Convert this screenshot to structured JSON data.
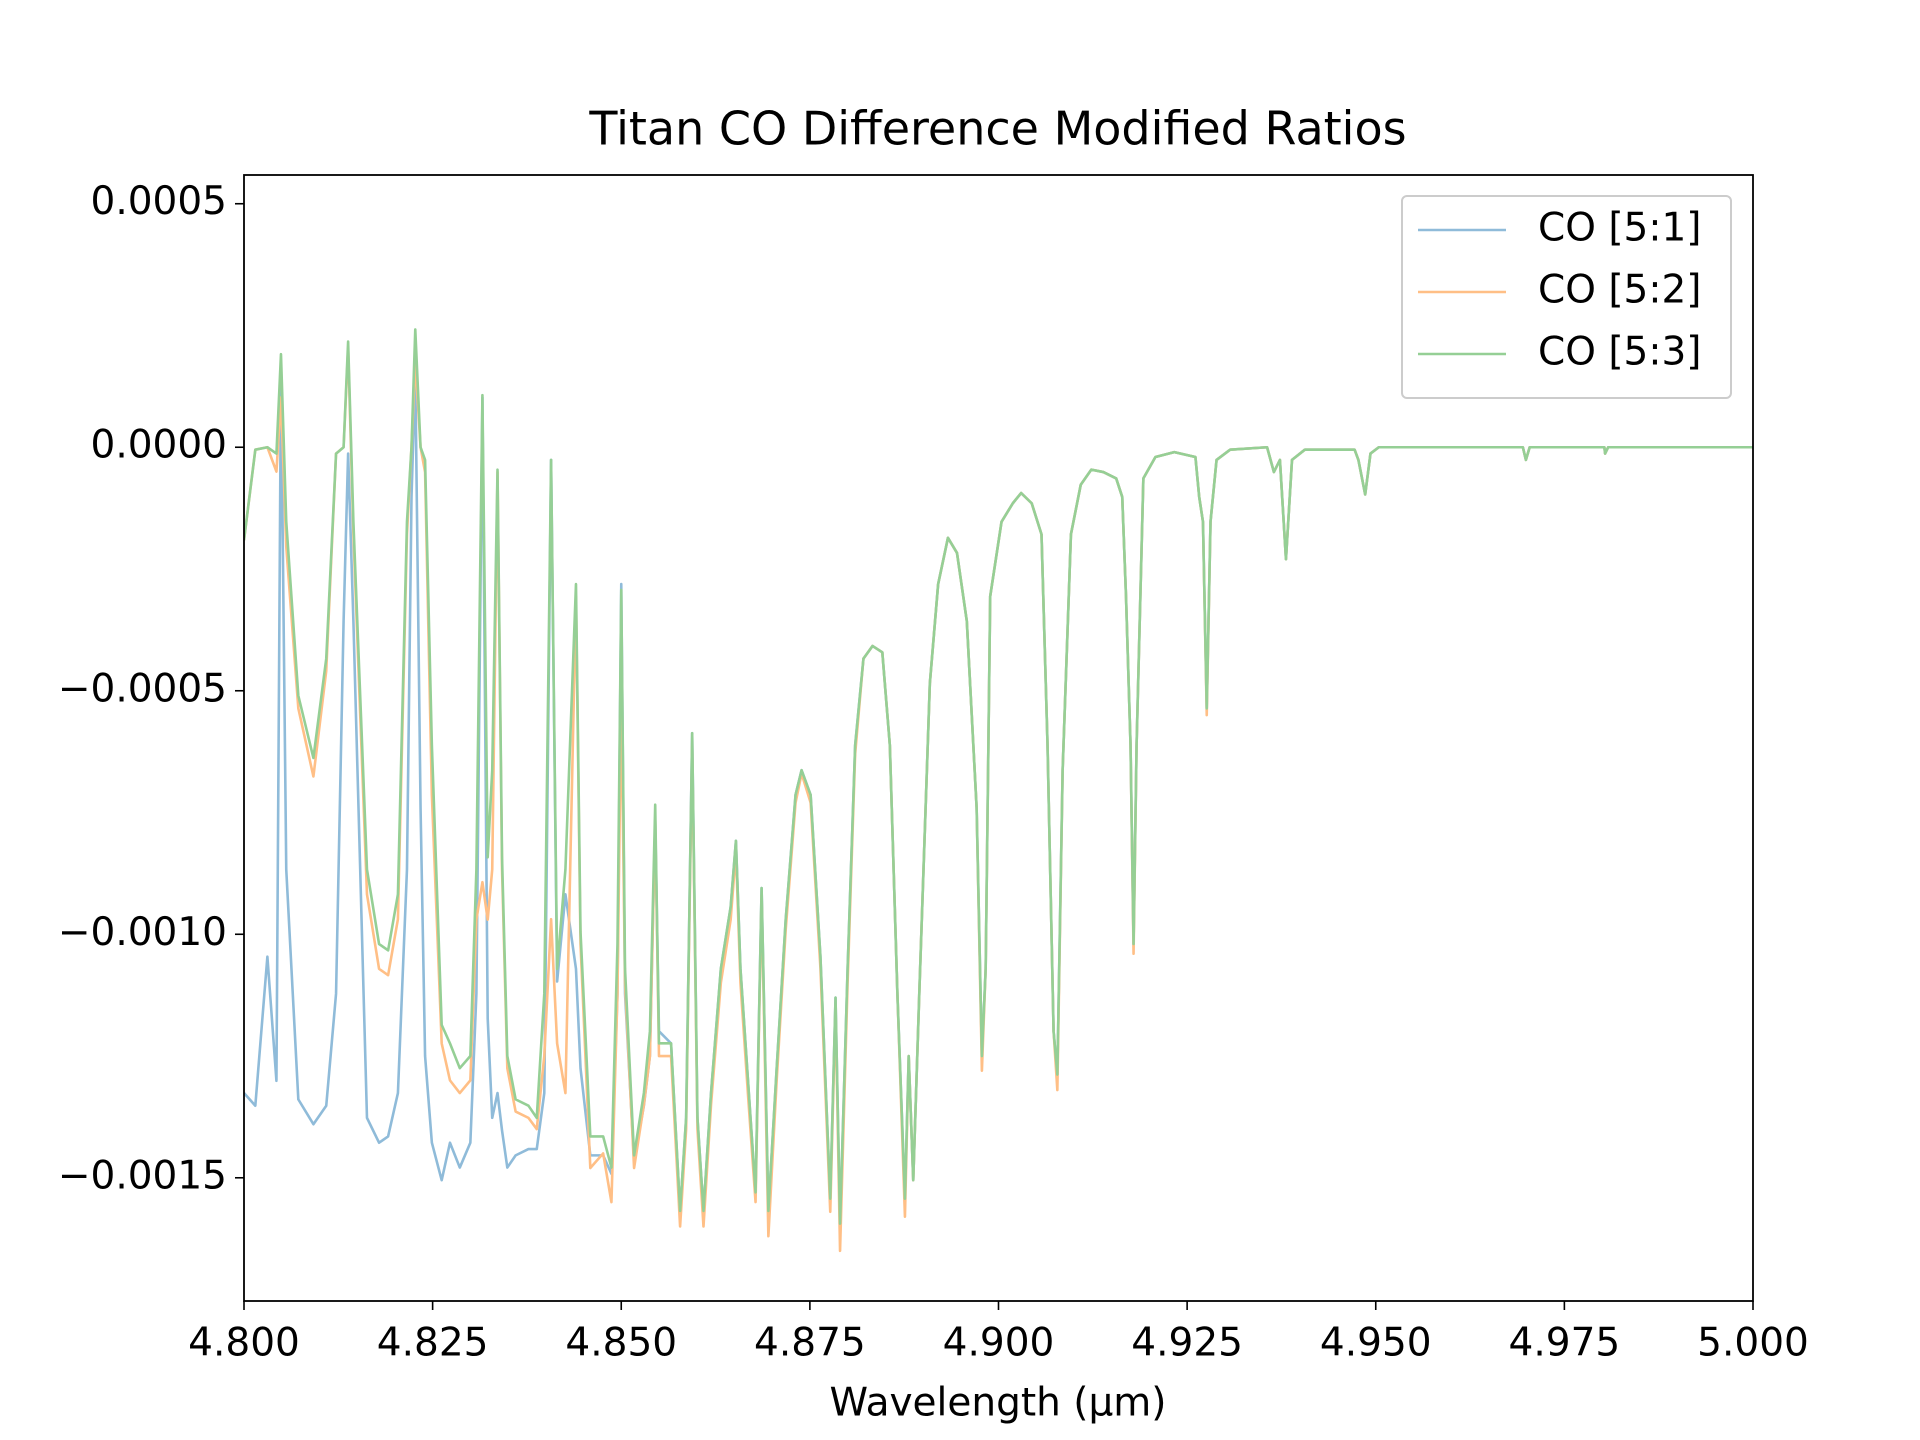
{
  "chart_data": {
    "type": "line",
    "title": "Titan CO Difference Modified Ratios",
    "x_label": "Wavelength (μm)",
    "xlim": [
      4.8,
      5.0
    ],
    "xticks": [
      {
        "value": 4.8,
        "label": "4.800"
      },
      {
        "value": 4.825,
        "label": "4.825"
      },
      {
        "value": 4.85,
        "label": "4.850"
      },
      {
        "value": 4.875,
        "label": "4.875"
      },
      {
        "value": 4.9,
        "label": "4.900"
      },
      {
        "value": 4.925,
        "label": "4.925"
      },
      {
        "value": 4.95,
        "label": "4.950"
      },
      {
        "value": 4.975,
        "label": "4.975"
      },
      {
        "value": 5.0,
        "label": "5.000"
      }
    ],
    "ylim": [
      -0.001753,
      0.000559
    ],
    "yticks": [
      {
        "value": 0.0005,
        "label": "0.0005"
      },
      {
        "value": 0,
        "label": "0.0000"
      },
      {
        "value": -0.0005,
        "label": "−0.0005"
      },
      {
        "value": -0.001,
        "label": "−0.0010"
      },
      {
        "value": -0.0015,
        "label": "−0.0015"
      }
    ],
    "grid": false,
    "legend": "upper right",
    "x": [
      4.8,
      4.8015,
      4.8031,
      4.8043,
      4.8049,
      4.8056,
      4.8072,
      4.8092,
      4.8109,
      4.8122,
      4.8132,
      4.8138,
      4.8145,
      4.8163,
      4.8179,
      4.8191,
      4.8204,
      4.8216,
      4.8222,
      4.8227,
      4.8234,
      4.824,
      4.8249,
      4.8262,
      4.8273,
      4.8286,
      4.83,
      4.8308,
      4.8316,
      4.8323,
      4.8329,
      4.8336,
      4.8342,
      4.8349,
      4.836,
      4.8377,
      4.8388,
      4.8398,
      4.8407,
      4.8415,
      4.8426,
      4.844,
      4.8446,
      4.8459,
      4.8476,
      4.8487,
      4.8495,
      4.85,
      4.8505,
      4.8517,
      4.853,
      4.8538,
      4.8545,
      4.855,
      4.8566,
      4.8578,
      4.8586,
      4.8594,
      4.8601,
      4.8609,
      4.8619,
      4.8632,
      4.8645,
      4.8652,
      4.8658,
      4.8668,
      4.8678,
      4.8686,
      4.8695,
      4.8706,
      4.8718,
      4.8731,
      4.8739,
      4.8751,
      4.8764,
      4.8777,
      4.8784,
      4.879,
      4.88,
      4.881,
      4.8821,
      4.8833,
      4.8846,
      4.8856,
      4.8866,
      4.8876,
      4.8881,
      4.8887,
      4.8895,
      4.8909,
      4.892,
      4.8933,
      4.8945,
      4.8958,
      4.8971,
      4.8978,
      4.8983,
      4.8989,
      4.9004,
      4.9019,
      4.903,
      4.9044,
      4.9057,
      4.9065,
      4.9073,
      4.9078,
      4.9085,
      4.9096,
      4.9109,
      4.9123,
      4.9139,
      4.9156,
      4.9164,
      4.9169,
      4.9175,
      4.9179,
      4.9183,
      4.9192,
      4.9208,
      4.9233,
      4.9261,
      4.9266,
      4.9271,
      4.9276,
      4.9281,
      4.9289,
      4.9307,
      4.9356,
      4.9365,
      4.9373,
      4.9381,
      4.9389,
      4.9406,
      4.9472,
      4.9477,
      4.9486,
      4.9493,
      4.9504,
      4.9695,
      4.9699,
      4.9704,
      4.9803,
      4.9804,
      4.9808,
      5.0
    ],
    "series": [
      {
        "name": "CO [5:1]",
        "color": "#8fbbd9",
        "values": [
          -0.001326,
          -0.001352,
          -0.001046,
          -0.001301,
          0.000153,
          -0.000867,
          -0.001339,
          -0.00139,
          -0.001352,
          -0.001122,
          -0.000357,
          -1.3e-05,
          -0.000357,
          -0.001377,
          -0.001428,
          -0.001415,
          -0.001326,
          -0.000867,
          -0.000102,
          0.000153,
          -0.00074,
          -0.00125,
          -0.001428,
          -0.001505,
          -0.001428,
          -0.001479,
          -0.001428,
          -0.001122,
          0.000102,
          -0.001173,
          -0.001377,
          -0.001326,
          -0.001403,
          -0.001479,
          -0.001454,
          -0.001441,
          -0.001441,
          -0.001326,
          -2.6e-05,
          -0.001097,
          -0.000918,
          -0.001071,
          -0.001275,
          -0.001454,
          -0.001454,
          -0.001492,
          -0.001122,
          -0.000281,
          -0.001122,
          -0.001466,
          -0.001352,
          -0.00125,
          -0.000765,
          -0.001199,
          -0.001224,
          -0.001568,
          -0.001377,
          -0.000587,
          -0.001377,
          -0.001568,
          -0.001326,
          -0.001071,
          -0.000944,
          -0.000808,
          -0.001071,
          -0.001301,
          -0.00153,
          -0.000905,
          -0.001568,
          -0.001275,
          -0.000969,
          -0.000714,
          -0.000663,
          -0.000714,
          -0.001046,
          -0.001543,
          -0.00113,
          -0.001594,
          -0.001071,
          -0.000612,
          -0.000434,
          -0.000408,
          -0.000421,
          -0.000612,
          -0.001122,
          -0.001543,
          -0.00125,
          -0.001505,
          -0.001122,
          -0.000485,
          -0.000281,
          -0.000186,
          -0.000217,
          -0.000357,
          -0.00074,
          -0.00125,
          -0.001071,
          -0.000306,
          -0.000153,
          -0.000115,
          -9.4e-05,
          -0.000115,
          -0.000179,
          -0.000612,
          -0.001199,
          -0.001288,
          -0.000663,
          -0.000179,
          -7.7e-05,
          -4.6e-05,
          -5.1e-05,
          -6.4e-05,
          -0.000102,
          -0.000306,
          -0.000612,
          -0.00102,
          -0.000612,
          -6.4e-05,
          -2e-05,
          -1e-05,
          -2e-05,
          -0.000102,
          -0.000153,
          -0.000536,
          -0.000153,
          -2.6e-05,
          -5e-06,
          0,
          -5.1e-05,
          -2.6e-05,
          -0.00023,
          -2.6e-05,
          -5e-06,
          -5e-06,
          -2.6e-05,
          -9.7e-05,
          -1.3e-05,
          0,
          0,
          -2.6e-05,
          0,
          0,
          -1.3e-05,
          0,
          0
        ]
      },
      {
        "name": "CO [5:2]",
        "color": "#ffbf86",
        "values": [
          -0.000191,
          -5e-06,
          0,
          -5e-05,
          0.000102,
          -0.000204,
          -0.000536,
          -0.000676,
          -0.000459,
          -1.3e-05,
          0,
          0.000204,
          -0.000179,
          -0.000918,
          -0.001071,
          -0.001084,
          -0.000969,
          -0.000179,
          0,
          0.000178,
          0,
          -5.1e-05,
          -0.000714,
          -0.001224,
          -0.0013,
          -0.001326,
          -0.0013,
          -0.00097,
          -0.000893,
          -0.00097,
          -0.000867,
          -5.1e-05,
          -0.000867,
          -0.001275,
          -0.001364,
          -0.001377,
          -0.0014,
          -0.00125,
          -0.000969,
          -0.001224,
          -0.001326,
          -0.000306,
          -0.00102,
          -0.00148,
          -0.00145,
          -0.00155,
          -0.001122,
          -0.00051,
          -0.0011,
          -0.00148,
          -0.00135,
          -0.00125,
          -0.000765,
          -0.00125,
          -0.00125,
          -0.0016,
          -0.0014,
          -0.000612,
          -0.0014,
          -0.0016,
          -0.00135,
          -0.0011,
          -0.00097,
          -0.00083,
          -0.0011,
          -0.00133,
          -0.00155,
          -0.00092,
          -0.00162,
          -0.0013,
          -0.00099,
          -0.00073,
          -0.00067,
          -0.00073,
          -0.00107,
          -0.00157,
          -0.00115,
          -0.00165,
          -0.0011,
          -0.00063,
          -0.000434,
          -0.000408,
          -0.000421,
          -0.000612,
          -0.001122,
          -0.00158,
          -0.00125,
          -0.001505,
          -0.001122,
          -0.000485,
          -0.000281,
          -0.000186,
          -0.000217,
          -0.000357,
          -0.00074,
          -0.00128,
          -0.001071,
          -0.000306,
          -0.000153,
          -0.000115,
          -9.4e-05,
          -0.000115,
          -0.000179,
          -0.000612,
          -0.001199,
          -0.00132,
          -0.000663,
          -0.000179,
          -7.7e-05,
          -4.6e-05,
          -5.1e-05,
          -6.4e-05,
          -0.000102,
          -0.000306,
          -0.000612,
          -0.00104,
          -0.000612,
          -6.4e-05,
          -2e-05,
          -1e-05,
          -2e-05,
          -0.000102,
          -0.000153,
          -0.00055,
          -0.000153,
          -2.6e-05,
          -5e-06,
          0,
          -5.1e-05,
          -2.6e-05,
          -0.00023,
          -2.6e-05,
          -5e-06,
          -5e-06,
          -2.6e-05,
          -9.7e-05,
          -1.3e-05,
          0,
          0,
          -2.6e-05,
          0,
          0,
          -1.3e-05,
          0,
          0
        ]
      },
      {
        "name": "CO [5:3]",
        "color": "#95cf95",
        "values": [
          -0.000191,
          -5e-06,
          0,
          -1.3e-05,
          0.000191,
          -0.000153,
          -0.00051,
          -0.000638,
          -0.000434,
          -1.3e-05,
          0,
          0.000217,
          -0.000153,
          -0.000867,
          -0.00102,
          -0.001033,
          -0.000918,
          -0.000153,
          0,
          0.000242,
          0,
          -2.6e-05,
          -0.000612,
          -0.001186,
          -0.001224,
          -0.001275,
          -0.00125,
          -0.000867,
          0.000107,
          -0.000842,
          -0.000663,
          -4.6e-05,
          -0.000842,
          -0.00125,
          -0.001339,
          -0.001352,
          -0.001377,
          -0.001122,
          -2.6e-05,
          -0.001071,
          -0.000867,
          -0.000281,
          -0.000995,
          -0.001415,
          -0.001415,
          -0.001479,
          -0.00102,
          -0.000293,
          -0.001071,
          -0.001454,
          -0.001326,
          -0.001199,
          -0.000734,
          -0.001224,
          -0.001224,
          -0.001568,
          -0.001377,
          -0.000587,
          -0.001377,
          -0.001568,
          -0.001326,
          -0.001071,
          -0.000944,
          -0.000808,
          -0.001071,
          -0.001301,
          -0.00153,
          -0.000905,
          -0.001568,
          -0.001275,
          -0.000969,
          -0.000714,
          -0.000663,
          -0.000714,
          -0.001046,
          -0.001543,
          -0.00113,
          -0.001594,
          -0.001071,
          -0.000612,
          -0.000434,
          -0.000408,
          -0.000421,
          -0.000612,
          -0.001122,
          -0.001543,
          -0.00125,
          -0.001505,
          -0.001122,
          -0.000485,
          -0.000281,
          -0.000186,
          -0.000217,
          -0.000357,
          -0.00074,
          -0.00125,
          -0.001071,
          -0.000306,
          -0.000153,
          -0.000115,
          -9.4e-05,
          -0.000115,
          -0.000179,
          -0.000612,
          -0.001199,
          -0.001288,
          -0.000663,
          -0.000179,
          -7.7e-05,
          -4.6e-05,
          -5.1e-05,
          -6.4e-05,
          -0.000102,
          -0.000306,
          -0.000612,
          -0.00102,
          -0.000612,
          -6.4e-05,
          -2e-05,
          -1e-05,
          -2e-05,
          -0.000102,
          -0.000153,
          -0.000536,
          -0.000153,
          -2.6e-05,
          -5e-06,
          0,
          -5.1e-05,
          -2.6e-05,
          -0.00023,
          -2.6e-05,
          -5e-06,
          -5e-06,
          -2.6e-05,
          -9.7e-05,
          -1.3e-05,
          0,
          0,
          -2.6e-05,
          0,
          0,
          -1.3e-05,
          0,
          0
        ]
      }
    ]
  }
}
